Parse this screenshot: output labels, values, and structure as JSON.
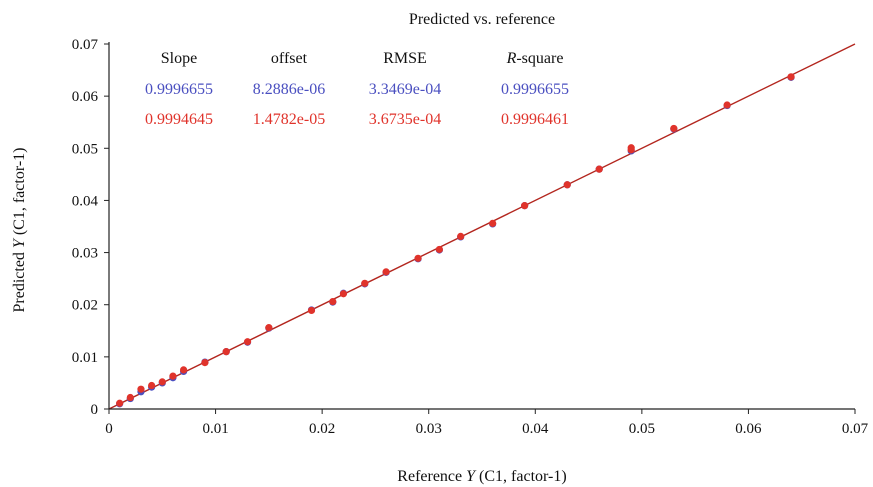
{
  "chart_data": {
    "type": "scatter",
    "title": "Predicted vs. reference",
    "xlabel": {
      "prefix": "Reference ",
      "italic": "Y",
      "suffix": " (C1, factor-1)"
    },
    "ylabel": {
      "prefix": "Predicted ",
      "italic": "Y",
      "suffix": " (C1, factor-1)"
    },
    "xlim": [
      0,
      0.07
    ],
    "ylim": [
      0,
      0.07
    ],
    "x_ticks": [
      "0",
      "0.01",
      "0.02",
      "0.03",
      "0.04",
      "0.05",
      "0.06",
      "0.07"
    ],
    "y_ticks": [
      "0",
      "0.01",
      "0.02",
      "0.03",
      "0.04",
      "0.05",
      "0.06",
      "0.07"
    ],
    "grid": false,
    "colors": {
      "calibration": "#4a4fc0",
      "validation": "#e0332b",
      "fit_line": "#b3261e"
    },
    "stats_table": {
      "headers": [
        {
          "text": "Slope",
          "italic_prefix": ""
        },
        {
          "text": "offset",
          "italic_prefix": ""
        },
        {
          "text": "RMSE",
          "italic_prefix": ""
        },
        {
          "text": "-square",
          "italic_prefix": "R"
        }
      ],
      "rows": [
        {
          "color": "#4a4fc0",
          "values": [
            "0.9996655",
            "8.2886e-06",
            "3.3469e-04",
            "0.9996655"
          ]
        },
        {
          "color": "#e0332b",
          "values": [
            "0.9994645",
            "1.4782e-05",
            "3.6735e-04",
            "0.9996461"
          ]
        }
      ]
    },
    "fit_line": {
      "x": [
        0,
        0.07
      ],
      "y": [
        0,
        0.07
      ]
    },
    "series": [
      {
        "color": "#4a4fc0",
        "x": [
          0.001,
          0.002,
          0.003,
          0.004,
          0.005,
          0.006,
          0.007,
          0.009,
          0.011,
          0.013,
          0.015,
          0.019,
          0.021,
          0.022,
          0.024,
          0.026,
          0.029,
          0.031,
          0.033,
          0.036,
          0.039,
          0.043,
          0.046,
          0.049,
          0.053,
          0.058,
          0.064
        ],
        "y": [
          0.001,
          0.002,
          0.0033,
          0.0042,
          0.005,
          0.006,
          0.0072,
          0.009,
          0.011,
          0.0128,
          0.0155,
          0.019,
          0.0205,
          0.0222,
          0.024,
          0.0262,
          0.0288,
          0.0305,
          0.033,
          0.0355,
          0.039,
          0.043,
          0.046,
          0.0495,
          0.0537,
          0.0582,
          0.0636
        ]
      },
      {
        "color": "#e0332b",
        "x": [
          0.001,
          0.002,
          0.003,
          0.004,
          0.005,
          0.006,
          0.007,
          0.009,
          0.011,
          0.013,
          0.015,
          0.019,
          0.021,
          0.022,
          0.024,
          0.026,
          0.029,
          0.031,
          0.033,
          0.036,
          0.039,
          0.043,
          0.046,
          0.049,
          0.049,
          0.053,
          0.058,
          0.064
        ],
        "y": [
          0.0011,
          0.0022,
          0.0038,
          0.0045,
          0.0052,
          0.0063,
          0.0075,
          0.0089,
          0.011,
          0.0129,
          0.0156,
          0.0189,
          0.0206,
          0.0221,
          0.0241,
          0.0263,
          0.0289,
          0.0306,
          0.0331,
          0.0356,
          0.039,
          0.043,
          0.046,
          0.0497,
          0.0501,
          0.0538,
          0.0583,
          0.0637
        ]
      }
    ]
  }
}
